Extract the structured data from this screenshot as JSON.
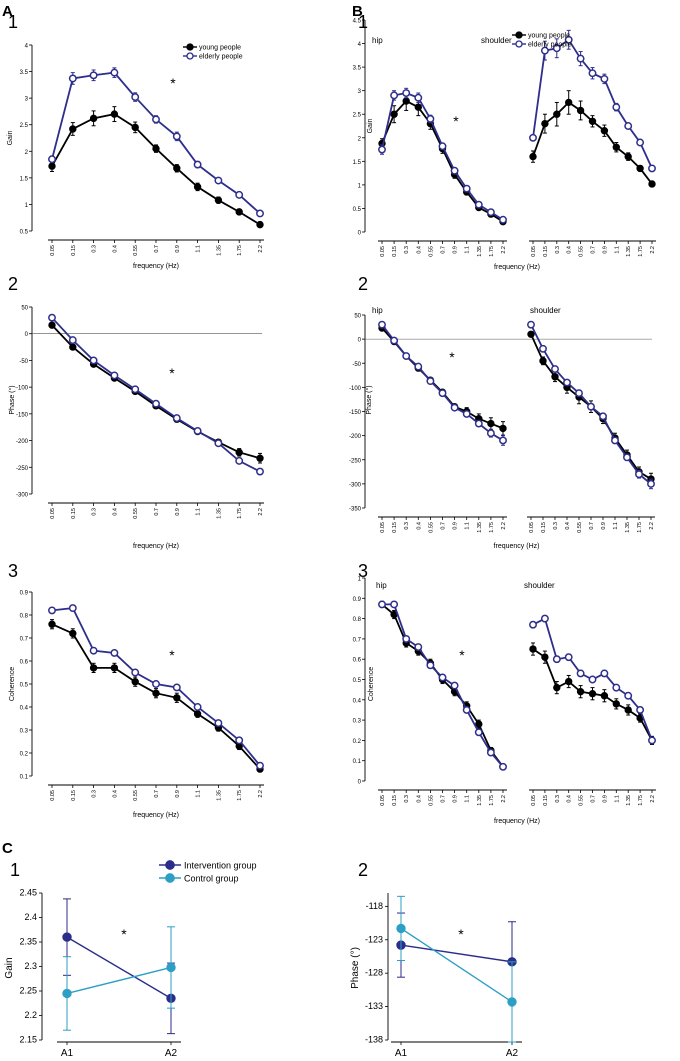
{
  "figure": {
    "panels": [
      {
        "label": "A"
      },
      {
        "label": "B"
      },
      {
        "label": "C"
      }
    ],
    "colors": {
      "young": "#000000",
      "elderly": "#2e2e8c",
      "intervention": "#2b2d8a",
      "control": "#2d9fc4",
      "axis": "#000000"
    }
  },
  "chart_data": [
    {
      "id": "A1",
      "panel": "A",
      "number": "1",
      "type": "line",
      "ylabel": "Gain",
      "xlabel": "frequency (Hz)",
      "categories": [
        "0.05",
        "0.15",
        "0.3",
        "0.4",
        "0.55",
        "0.7",
        "0.9",
        "1.1",
        "1.35",
        "1.75",
        "2.2"
      ],
      "ylim": [
        0.5,
        4
      ],
      "yticks": [
        "0.5",
        "1",
        "1.5",
        "2",
        "2.5",
        "3",
        "3.5",
        "4"
      ],
      "star": "*",
      "legend": [
        "young people",
        "elderly people"
      ],
      "series": [
        {
          "name": "young people",
          "key": "young",
          "values": [
            1.72,
            2.42,
            2.62,
            2.7,
            2.45,
            2.05,
            1.68,
            1.33,
            1.08,
            0.86,
            0.62
          ],
          "err": [
            0.1,
            0.12,
            0.14,
            0.14,
            0.1,
            0.07,
            0.07,
            0.07,
            0.06,
            0.05,
            0.04
          ]
        },
        {
          "name": "elderly people",
          "key": "elderly",
          "values": [
            1.85,
            3.37,
            3.43,
            3.48,
            3.02,
            2.6,
            2.28,
            1.75,
            1.45,
            1.18,
            0.83
          ],
          "err": [
            0.06,
            0.11,
            0.1,
            0.09,
            0.08,
            0.07,
            0.08,
            0.06,
            0.05,
            0.04,
            0.04
          ]
        }
      ]
    },
    {
      "id": "A2",
      "panel": "A",
      "number": "2",
      "type": "line",
      "ylabel": "Phase (°)",
      "xlabel": "frequency (Hz)",
      "categories": [
        "0.05",
        "0.15",
        "0.3",
        "0.4",
        "0.55",
        "0.7",
        "0.9",
        "1.1",
        "1.35",
        "1.75",
        "2.2"
      ],
      "ylim": [
        -300,
        50
      ],
      "yticks": [
        "50",
        "0",
        "-50",
        "-100",
        "-150",
        "-200",
        "-250",
        "-300"
      ],
      "zeroline": true,
      "star": "*",
      "series": [
        {
          "name": "young people",
          "key": "young",
          "values": [
            16,
            -25,
            -57,
            -83,
            -108,
            -135,
            -160,
            -183,
            -203,
            -222,
            -233
          ],
          "err": [
            4,
            4,
            4,
            4,
            5,
            4,
            4,
            4,
            5,
            7,
            9
          ]
        },
        {
          "name": "elderly people",
          "key": "elderly",
          "values": [
            30,
            -12,
            -50,
            -78,
            -104,
            -131,
            -158,
            -182,
            -205,
            -238,
            -258
          ],
          "err": [
            3,
            3,
            3,
            3,
            3,
            3,
            3,
            3,
            4,
            4,
            5
          ]
        }
      ]
    },
    {
      "id": "A3",
      "panel": "A",
      "number": "3",
      "type": "line",
      "ylabel": "Coherence",
      "xlabel": "frequency (Hz)",
      "categories": [
        "0.05",
        "0.15",
        "0.3",
        "0.4",
        "0.55",
        "0.7",
        "0.9",
        "1.1",
        "1.35",
        "1.75",
        "2.2"
      ],
      "ylim": [
        0.1,
        0.9
      ],
      "yticks": [
        "0.1",
        "0.2",
        "0.3",
        "0.4",
        "0.5",
        "0.6",
        "0.7",
        "0.8",
        "0.9"
      ],
      "star": "*",
      "series": [
        {
          "name": "young people",
          "key": "young",
          "values": [
            0.76,
            0.72,
            0.57,
            0.57,
            0.51,
            0.46,
            0.44,
            0.37,
            0.31,
            0.23,
            0.13
          ],
          "err": [
            0.02,
            0.02,
            0.02,
            0.02,
            0.02,
            0.02,
            0.02,
            0.015,
            0.015,
            0.015,
            0.01
          ]
        },
        {
          "name": "elderly people",
          "key": "elderly",
          "values": [
            0.82,
            0.83,
            0.645,
            0.635,
            0.55,
            0.5,
            0.485,
            0.4,
            0.33,
            0.255,
            0.145
          ],
          "err": [
            0.01,
            0.01,
            0.01,
            0.01,
            0.01,
            0.01,
            0.01,
            0.01,
            0.01,
            0.01,
            0.01
          ]
        }
      ]
    },
    {
      "id": "B1",
      "panel": "B",
      "number": "1",
      "type": "line",
      "ylabel": "Gain",
      "xlabel": "frequency (Hz)",
      "categories": [
        "0.05",
        "0.15",
        "0.3",
        "0.4",
        "0.55",
        "0.7",
        "0.9",
        "1.1",
        "1.35",
        "1.75",
        "2.2"
      ],
      "ylim": [
        0,
        4.5
      ],
      "yticks": [
        "0",
        "0.5",
        "1",
        "1.5",
        "2",
        "2.5",
        "3",
        "3.5",
        "4",
        "4.5"
      ],
      "star": "*",
      "group_labels": [
        "hip",
        "shoulder"
      ],
      "legend": [
        "young people",
        "elderly people"
      ],
      "groups": [
        {
          "name": "hip",
          "series": [
            {
              "name": "young people",
              "key": "young",
              "values": [
                1.88,
                2.5,
                2.78,
                2.65,
                2.3,
                1.77,
                1.22,
                0.85,
                0.52,
                0.38,
                0.22
              ],
              "err": [
                0.1,
                0.18,
                0.2,
                0.18,
                0.12,
                0.1,
                0.08,
                0.06,
                0.05,
                0.04,
                0.04
              ]
            },
            {
              "name": "elderly people",
              "key": "elderly",
              "values": [
                1.75,
                2.9,
                2.95,
                2.85,
                2.4,
                1.82,
                1.3,
                0.92,
                0.58,
                0.42,
                0.26
              ],
              "err": [
                0.1,
                0.1,
                0.1,
                0.1,
                0.08,
                0.06,
                0.05,
                0.04,
                0.04,
                0.03,
                0.03
              ]
            }
          ]
        },
        {
          "name": "shoulder",
          "series": [
            {
              "name": "young people",
              "key": "young",
              "values": [
                1.6,
                2.3,
                2.5,
                2.75,
                2.58,
                2.35,
                2.15,
                1.8,
                1.6,
                1.35,
                1.02
              ],
              "err": [
                0.12,
                0.2,
                0.25,
                0.25,
                0.2,
                0.12,
                0.12,
                0.1,
                0.08,
                0.06,
                0.05
              ]
            },
            {
              "name": "elderly people",
              "key": "elderly",
              "values": [
                2.0,
                3.85,
                3.9,
                4.08,
                3.68,
                3.37,
                3.25,
                2.65,
                2.25,
                1.9,
                1.35
              ],
              "err": [
                0.05,
                0.2,
                0.2,
                0.2,
                0.15,
                0.12,
                0.1,
                0.08,
                0.06,
                0.05,
                0.04
              ]
            }
          ]
        }
      ]
    },
    {
      "id": "B2",
      "panel": "B",
      "number": "2",
      "type": "line",
      "ylabel": "Phase (°)",
      "xlabel": "frequency (Hz)",
      "categories": [
        "0.05",
        "0.15",
        "0.3",
        "0.4",
        "0.55",
        "0.7",
        "0.9",
        "1.1",
        "1.35",
        "1.75",
        "2.2"
      ],
      "ylim": [
        -350,
        50
      ],
      "yticks": [
        "50",
        "0",
        "-50",
        "-100",
        "-150",
        "-200",
        "-250",
        "-300",
        "-350"
      ],
      "zeroline": true,
      "star": "*",
      "group_labels": [
        "hip",
        "shoulder"
      ],
      "groups": [
        {
          "name": "hip",
          "series": [
            {
              "name": "young people",
              "key": "young",
              "values": [
                23,
                -5,
                -35,
                -60,
                -85,
                -110,
                -140,
                -150,
                -165,
                -175,
                -185
              ],
              "err": [
                3,
                3,
                3,
                4,
                4,
                4,
                5,
                8,
                10,
                12,
                14
              ]
            },
            {
              "name": "elderly people",
              "key": "elderly",
              "values": [
                30,
                -3,
                -35,
                -57,
                -87,
                -112,
                -142,
                -155,
                -175,
                -195,
                -210
              ],
              "err": [
                3,
                3,
                3,
                3,
                3,
                4,
                4,
                5,
                6,
                8,
                10
              ]
            }
          ]
        },
        {
          "name": "shoulder",
          "series": [
            {
              "name": "young people",
              "key": "young",
              "values": [
                10,
                -45,
                -78,
                -100,
                -120,
                -140,
                -165,
                -205,
                -240,
                -275,
                -290
              ],
              "err": [
                5,
                8,
                10,
                12,
                14,
                12,
                10,
                10,
                10,
                10,
                12
              ]
            },
            {
              "name": "elderly people",
              "key": "elderly",
              "values": [
                30,
                -20,
                -62,
                -90,
                -112,
                -140,
                -160,
                -210,
                -245,
                -280,
                -300
              ],
              "err": [
                4,
                5,
                6,
                6,
                6,
                6,
                6,
                6,
                6,
                8,
                10
              ]
            }
          ]
        }
      ]
    },
    {
      "id": "B3",
      "panel": "B",
      "number": "3",
      "type": "line",
      "ylabel": "Coherence",
      "xlabel": "frequency (Hz)",
      "categories": [
        "0.05",
        "0.15",
        "0.3",
        "0.4",
        "0.55",
        "0.7",
        "0.9",
        "1.1",
        "1.35",
        "1.75",
        "2.2"
      ],
      "ylim": [
        0,
        1
      ],
      "yticks": [
        "0",
        "0.1",
        "0.2",
        "0.3",
        "0.4",
        "0.5",
        "0.6",
        "0.7",
        "0.8",
        "0.9",
        "1"
      ],
      "star": "*",
      "group_labels": [
        "hip",
        "shoulder"
      ],
      "groups": [
        {
          "name": "hip",
          "series": [
            {
              "name": "young people",
              "key": "young",
              "values": [
                0.87,
                0.82,
                0.68,
                0.64,
                0.58,
                0.5,
                0.44,
                0.37,
                0.28,
                0.15,
                0.07
              ],
              "err": [
                0.015,
                0.02,
                0.02,
                0.02,
                0.02,
                0.02,
                0.02,
                0.02,
                0.02,
                0.015,
                0.01
              ]
            },
            {
              "name": "elderly people",
              "key": "elderly",
              "values": [
                0.87,
                0.87,
                0.7,
                0.66,
                0.57,
                0.51,
                0.47,
                0.35,
                0.24,
                0.14,
                0.07
              ],
              "err": [
                0.01,
                0.01,
                0.01,
                0.01,
                0.01,
                0.01,
                0.01,
                0.01,
                0.01,
                0.01,
                0.01
              ]
            }
          ]
        },
        {
          "name": "shoulder",
          "series": [
            {
              "name": "young people",
              "key": "young",
              "values": [
                0.65,
                0.61,
                0.46,
                0.49,
                0.44,
                0.43,
                0.42,
                0.38,
                0.35,
                0.31,
                0.2
              ],
              "err": [
                0.03,
                0.03,
                0.03,
                0.03,
                0.03,
                0.03,
                0.03,
                0.025,
                0.025,
                0.02,
                0.02
              ]
            },
            {
              "name": "elderly people",
              "key": "elderly",
              "values": [
                0.77,
                0.8,
                0.6,
                0.61,
                0.53,
                0.5,
                0.53,
                0.46,
                0.42,
                0.35,
                0.2
              ],
              "err": [
                0.015,
                0.015,
                0.015,
                0.015,
                0.015,
                0.015,
                0.015,
                0.015,
                0.015,
                0.015,
                0.015
              ]
            }
          ]
        }
      ]
    },
    {
      "id": "C1",
      "panel": "C",
      "number": "1",
      "type": "line",
      "ylabel": "Gain",
      "xlabel": "",
      "categories": [
        "A1",
        "A2"
      ],
      "ylim": [
        2.15,
        2.45
      ],
      "yticks": [
        "2.15",
        "2.2",
        "2.25",
        "2.3",
        "2.35",
        "2.4",
        "2.45"
      ],
      "star": "*",
      "legend": [
        "Intervention group",
        "Control group"
      ],
      "series": [
        {
          "name": "Intervention group",
          "key": "intervention",
          "values": [
            2.36,
            2.235
          ],
          "err": [
            0.078,
            0.072
          ]
        },
        {
          "name": "Control group",
          "key": "control",
          "values": [
            2.245,
            2.298
          ],
          "err": [
            0.075,
            0.083
          ]
        }
      ]
    },
    {
      "id": "C2",
      "panel": "C",
      "number": "2",
      "type": "line",
      "ylabel": "Phase (°)",
      "xlabel": "",
      "categories": [
        "A1",
        "A2"
      ],
      "ylim": [
        -138,
        -116
      ],
      "yticks": [
        "-118",
        "-123",
        "-128",
        "-133",
        "-138"
      ],
      "star": "*",
      "series": [
        {
          "name": "Intervention group",
          "key": "intervention",
          "values": [
            -123.8,
            -126.3
          ],
          "err": [
            4.8,
            6.0
          ]
        },
        {
          "name": "Control group",
          "key": "control",
          "values": [
            -121.3,
            -132.3
          ],
          "err": [
            4.8,
            6.0
          ]
        }
      ]
    }
  ]
}
